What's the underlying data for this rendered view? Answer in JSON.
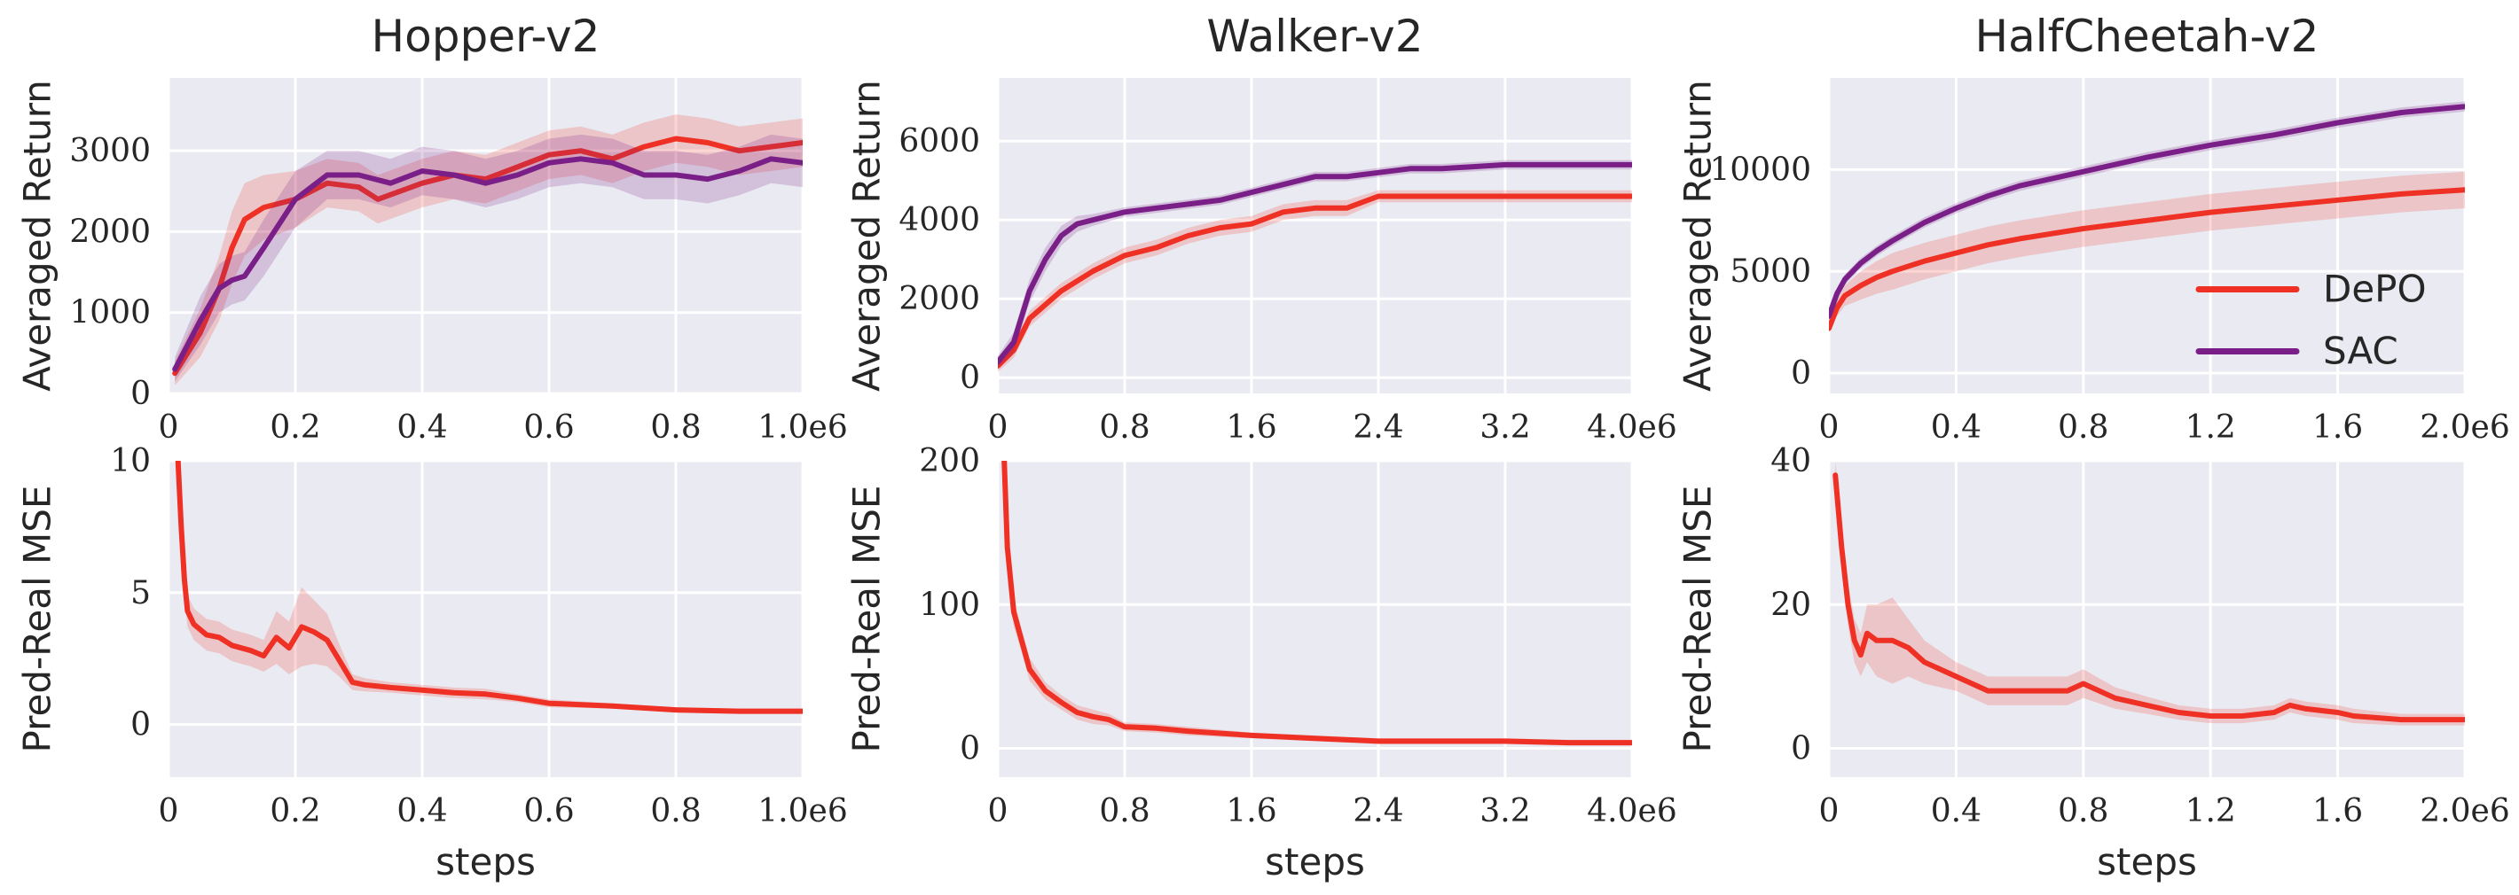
{
  "colors": {
    "depo": "#ee3124",
    "sac": "#7a1f87"
  },
  "chart_data": [
    {
      "id": "hopper-return",
      "type": "line",
      "title": "Hopper-v2",
      "xlabel": "",
      "ylabel": "Averaged Return",
      "xlim": [
        0,
        1000000
      ],
      "ylim": [
        0,
        3900
      ],
      "xticks": [
        0,
        200000,
        400000,
        600000,
        800000,
        1000000
      ],
      "xtick_labels": [
        "0",
        "0.2",
        "0.4",
        "0.6",
        "0.8",
        "1.0e6"
      ],
      "yticks": [
        0,
        1000,
        2000,
        3000
      ],
      "ytick_labels": [
        "0",
        "1000",
        "2000",
        "3000"
      ],
      "series": [
        {
          "name": "DePO",
          "key": "depo",
          "x": [
            10000,
            50000,
            80000,
            100000,
            120000,
            150000,
            200000,
            250000,
            300000,
            330000,
            400000,
            450000,
            500000,
            550000,
            600000,
            650000,
            700000,
            750000,
            800000,
            850000,
            900000,
            950000,
            1000000
          ],
          "y": [
            250,
            750,
            1300,
            1800,
            2150,
            2300,
            2400,
            2600,
            2550,
            2400,
            2600,
            2700,
            2650,
            2800,
            2950,
            3000,
            2900,
            3050,
            3150,
            3100,
            3000,
            3050,
            3100
          ],
          "spread": [
            150,
            300,
            400,
            450,
            450,
            400,
            350,
            300,
            300,
            300,
            300,
            300,
            300,
            300,
            300,
            300,
            300,
            300,
            300,
            300,
            300,
            300,
            300
          ]
        },
        {
          "name": "SAC",
          "key": "sac",
          "x": [
            10000,
            50000,
            80000,
            100000,
            120000,
            150000,
            200000,
            250000,
            300000,
            350000,
            400000,
            450000,
            500000,
            550000,
            600000,
            650000,
            700000,
            750000,
            800000,
            850000,
            900000,
            950000,
            1000000
          ],
          "y": [
            300,
            900,
            1300,
            1400,
            1450,
            1800,
            2400,
            2700,
            2700,
            2600,
            2750,
            2700,
            2600,
            2700,
            2850,
            2900,
            2850,
            2700,
            2700,
            2650,
            2750,
            2900,
            2850
          ],
          "spread": [
            150,
            300,
            300,
            300,
            300,
            350,
            350,
            300,
            300,
            300,
            300,
            300,
            300,
            300,
            300,
            300,
            300,
            300,
            300,
            300,
            300,
            300,
            300
          ]
        }
      ]
    },
    {
      "id": "walker-return",
      "type": "line",
      "title": "Walker-v2",
      "xlabel": "",
      "ylabel": "Averaged Return",
      "xlim": [
        0,
        4000000
      ],
      "ylim": [
        -400,
        7600
      ],
      "xticks": [
        0,
        800000,
        1600000,
        2400000,
        3200000,
        4000000
      ],
      "xtick_labels": [
        "0",
        "0.8",
        "1.6",
        "2.4",
        "3.2",
        "4.0e6"
      ],
      "yticks": [
        0,
        2000,
        4000,
        6000
      ],
      "ytick_labels": [
        "0",
        "2000",
        "4000",
        "6000"
      ],
      "series": [
        {
          "name": "DePO",
          "key": "depo",
          "x": [
            0,
            100000,
            200000,
            400000,
            600000,
            800000,
            1000000,
            1200000,
            1400000,
            1600000,
            1800000,
            2000000,
            2200000,
            2400000,
            2800000,
            3200000,
            3600000,
            4000000
          ],
          "y": [
            300,
            700,
            1500,
            2200,
            2700,
            3100,
            3300,
            3600,
            3800,
            3900,
            4200,
            4300,
            4300,
            4600,
            4600,
            4600,
            4600,
            4600
          ],
          "spread": [
            150,
            200,
            200,
            200,
            200,
            200,
            200,
            200,
            200,
            200,
            200,
            200,
            200,
            150,
            150,
            150,
            150,
            150
          ]
        },
        {
          "name": "SAC",
          "key": "sac",
          "x": [
            0,
            100000,
            200000,
            300000,
            400000,
            500000,
            600000,
            800000,
            1000000,
            1200000,
            1400000,
            1600000,
            1800000,
            2000000,
            2200000,
            2400000,
            2600000,
            2800000,
            3200000,
            3600000,
            4000000
          ],
          "y": [
            400,
            900,
            2200,
            3000,
            3600,
            3900,
            4000,
            4200,
            4300,
            4400,
            4500,
            4700,
            4900,
            5100,
            5100,
            5200,
            5300,
            5300,
            5400,
            5400,
            5400
          ],
          "spread": [
            150,
            250,
            300,
            300,
            250,
            200,
            150,
            120,
            120,
            120,
            120,
            120,
            120,
            120,
            120,
            120,
            120,
            120,
            120,
            120,
            120
          ]
        }
      ]
    },
    {
      "id": "halfcheetah-return",
      "type": "line",
      "title": "HalfCheetah-v2",
      "xlabel": "",
      "ylabel": "Averaged Return",
      "xlim": [
        0,
        2000000
      ],
      "ylim": [
        -1000,
        14500
      ],
      "xticks": [
        0,
        400000,
        800000,
        1200000,
        1600000,
        2000000
      ],
      "xtick_labels": [
        "0",
        "0.4",
        "0.8",
        "1.2",
        "1.6",
        "2.0e6"
      ],
      "yticks": [
        0,
        5000,
        10000
      ],
      "ytick_labels": [
        "0",
        "5000",
        "10000"
      ],
      "legend": {
        "placement": "center-right",
        "entries": [
          "DePO",
          "SAC"
        ]
      },
      "series": [
        {
          "name": "DePO",
          "key": "depo",
          "x": [
            0,
            25000,
            50000,
            100000,
            150000,
            200000,
            300000,
            400000,
            500000,
            600000,
            800000,
            1000000,
            1200000,
            1400000,
            1600000,
            1800000,
            2000000
          ],
          "y": [
            2200,
            3200,
            3800,
            4300,
            4700,
            5000,
            5500,
            5900,
            6300,
            6600,
            7100,
            7500,
            7900,
            8200,
            8500,
            8800,
            9000
          ],
          "spread": [
            200,
            400,
            500,
            700,
            800,
            900,
            900,
            900,
            900,
            900,
            900,
            900,
            900,
            900,
            900,
            900,
            900
          ]
        },
        {
          "name": "SAC",
          "key": "sac",
          "x": [
            0,
            25000,
            50000,
            100000,
            150000,
            200000,
            300000,
            400000,
            500000,
            600000,
            800000,
            1000000,
            1200000,
            1400000,
            1600000,
            1800000,
            2000000
          ],
          "y": [
            2800,
            3900,
            4600,
            5400,
            6000,
            6500,
            7400,
            8100,
            8700,
            9200,
            9900,
            10600,
            11200,
            11700,
            12300,
            12800,
            13100
          ],
          "spread": [
            200,
            250,
            250,
            250,
            250,
            250,
            250,
            250,
            250,
            250,
            250,
            250,
            250,
            250,
            250,
            250,
            250
          ]
        }
      ]
    },
    {
      "id": "hopper-mse",
      "type": "line",
      "title": "",
      "xlabel": "steps",
      "ylabel": "Pred-Real MSE",
      "xlim": [
        0,
        1000000
      ],
      "ylim": [
        -2,
        10
      ],
      "xticks": [
        0,
        200000,
        400000,
        600000,
        800000,
        1000000
      ],
      "xtick_labels": [
        "0",
        "0.2",
        "0.4",
        "0.6",
        "0.8",
        "1.0e6"
      ],
      "yticks": [
        0,
        5,
        10
      ],
      "ytick_labels": [
        "0",
        "5",
        "10"
      ],
      "series": [
        {
          "name": "DePO",
          "key": "depo",
          "x": [
            15000,
            20000,
            25000,
            30000,
            40000,
            60000,
            80000,
            100000,
            130000,
            150000,
            170000,
            190000,
            210000,
            230000,
            250000,
            270000,
            290000,
            310000,
            350000,
            400000,
            450000,
            500000,
            550000,
            600000,
            700000,
            800000,
            900000,
            1000000
          ],
          "y": [
            10,
            7.5,
            5.5,
            4.3,
            3.8,
            3.4,
            3.3,
            3.0,
            2.8,
            2.6,
            3.3,
            2.9,
            3.7,
            3.5,
            3.2,
            2.4,
            1.6,
            1.5,
            1.4,
            1.3,
            1.2,
            1.15,
            1.0,
            0.8,
            0.7,
            0.55,
            0.5,
            0.5
          ],
          "spread": [
            0.6,
            0.6,
            0.6,
            0.6,
            0.6,
            0.6,
            0.6,
            0.6,
            0.6,
            0.6,
            1.0,
            1.0,
            1.5,
            1.2,
            1.0,
            0.6,
            0.3,
            0.25,
            0.2,
            0.2,
            0.2,
            0.2,
            0.15,
            0.15,
            0.1,
            0.1,
            0.1,
            0.1
          ]
        }
      ]
    },
    {
      "id": "walker-mse",
      "type": "line",
      "title": "",
      "xlabel": "steps",
      "ylabel": "Pred-Real MSE",
      "xlim": [
        0,
        4000000
      ],
      "ylim": [
        -20,
        200
      ],
      "xticks": [
        0,
        800000,
        1600000,
        2400000,
        3200000,
        4000000
      ],
      "xtick_labels": [
        "0",
        "0.8",
        "1.6",
        "2.4",
        "3.2",
        "4.0e6"
      ],
      "yticks": [
        0,
        100,
        200
      ],
      "ytick_labels": [
        "0",
        "100",
        "200"
      ],
      "series": [
        {
          "name": "DePO",
          "key": "depo",
          "x": [
            40000,
            60000,
            100000,
            150000,
            200000,
            300000,
            400000,
            500000,
            600000,
            700000,
            800000,
            1000000,
            1200000,
            1600000,
            2000000,
            2400000,
            2800000,
            3200000,
            3600000,
            4000000
          ],
          "y": [
            200,
            140,
            95,
            75,
            55,
            40,
            32,
            25,
            22,
            20,
            15,
            14,
            12,
            9,
            7,
            5,
            5,
            5,
            4,
            4
          ],
          "spread": [
            10,
            10,
            10,
            8,
            8,
            6,
            5,
            5,
            5,
            4,
            3,
            3,
            3,
            2,
            2,
            2,
            2,
            2,
            2,
            2
          ]
        }
      ]
    },
    {
      "id": "halfcheetah-mse",
      "type": "line",
      "title": "",
      "xlabel": "steps",
      "ylabel": "Pred-Real MSE",
      "xlim": [
        0,
        2000000
      ],
      "ylim": [
        -4,
        40
      ],
      "xticks": [
        0,
        400000,
        800000,
        1200000,
        1600000,
        2000000
      ],
      "xtick_labels": [
        "0",
        "0.4",
        "0.8",
        "1.2",
        "1.6",
        "2.0e6"
      ],
      "yticks": [
        0,
        20,
        40
      ],
      "ytick_labels": [
        "0",
        "20",
        "40"
      ],
      "series": [
        {
          "name": "DePO",
          "key": "depo",
          "x": [
            20000,
            40000,
            60000,
            80000,
            100000,
            120000,
            150000,
            200000,
            250000,
            300000,
            400000,
            500000,
            600000,
            700000,
            750000,
            800000,
            900000,
            1000000,
            1100000,
            1200000,
            1300000,
            1400000,
            1450000,
            1500000,
            1600000,
            1650000,
            1800000,
            2000000
          ],
          "y": [
            38,
            28,
            20,
            15,
            13,
            16,
            15,
            15,
            14,
            12,
            10,
            8,
            8,
            8,
            8,
            9,
            7,
            6,
            5,
            4.5,
            4.5,
            5,
            6,
            5.5,
            5,
            4.5,
            4,
            4
          ],
          "spread": [
            2,
            3,
            3,
            3,
            3,
            4,
            5,
            6,
            4,
            3,
            2,
            2,
            2,
            2,
            2,
            2,
            1.5,
            1.2,
            1,
            1,
            1,
            1,
            1,
            1,
            1,
            1,
            0.8,
            0.8
          ]
        }
      ]
    }
  ]
}
